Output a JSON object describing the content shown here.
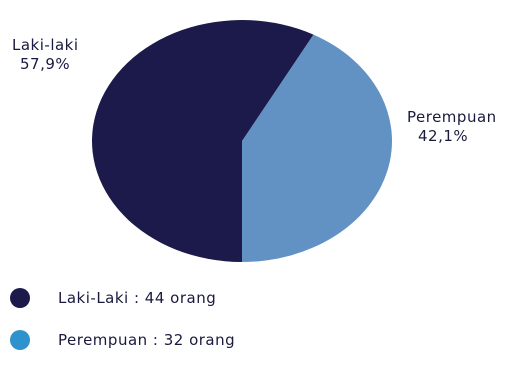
{
  "chart_data": {
    "type": "pie",
    "title": "",
    "categories": [
      "Laki-laki",
      "Perempuan"
    ],
    "values": [
      57.9,
      42.1
    ],
    "counts": [
      44,
      32
    ],
    "slice_labels": [
      {
        "name": "Laki-laki",
        "percent": "57,9%"
      },
      {
        "name": "Perempuan",
        "percent": "42,1%"
      }
    ],
    "colors": [
      "#1b1a4a",
      "#6292c4"
    ],
    "legend": {
      "placement": "bottom-left",
      "items": [
        {
          "text": "Laki-Laki : 44 orang",
          "color": "#1b1a4a"
        },
        {
          "text": "Perempuan : 32 orang",
          "color": "#2e93cc"
        }
      ]
    }
  }
}
